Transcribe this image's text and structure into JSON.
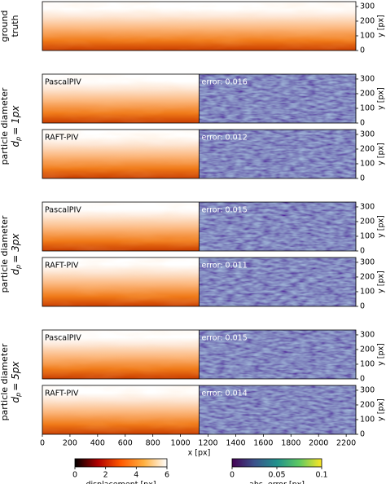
{
  "figure": {
    "xlabel": "x [px]",
    "ylabel": "y [px]",
    "xlim": [
      0,
      2270
    ],
    "xticks": [
      0,
      200,
      400,
      600,
      800,
      1000,
      1200,
      1400,
      1600,
      1800,
      2000,
      2200
    ],
    "ylim": [
      0,
      333
    ],
    "yticks": [
      0,
      100,
      200,
      300
    ],
    "rows": [
      {
        "label": [
          "ground",
          "truth"
        ]
      },
      {
        "label": [
          "particle diameter"
        ],
        "symbol": "d",
        "subscript": "p",
        "rest": "= 1px",
        "panels": [
          {
            "method": "PascalPIV",
            "error": "error: 0.016"
          },
          {
            "method": "RAFT-PIV",
            "error": "error: 0.012"
          }
        ]
      },
      {
        "label": [
          "particle diameter"
        ],
        "symbol": "d",
        "subscript": "p",
        "rest": "= 3px",
        "panels": [
          {
            "method": "PascalPIV",
            "error": "error: 0.015"
          },
          {
            "method": "RAFT-PIV",
            "error": "error: 0.011"
          }
        ]
      },
      {
        "label": [
          "particle diameter"
        ],
        "symbol": "d",
        "subscript": "p",
        "rest": "= 5px",
        "panels": [
          {
            "method": "PascalPIV",
            "error": "error: 0.015"
          },
          {
            "method": "RAFT-PIV",
            "error": "error: 0.014"
          }
        ]
      }
    ],
    "colorbars": [
      {
        "label": "displacement [px]",
        "lim": [
          0,
          6
        ],
        "ticks": [
          0,
          2,
          4,
          6
        ],
        "colors": [
          "#000000",
          "#b00000",
          "#ff5a00",
          "#ffb040",
          "#ffffff"
        ]
      },
      {
        "label": "abs. error [px]",
        "lim": [
          0,
          0.1
        ],
        "ticks": [
          0,
          {
            "value": 0.05,
            "label": "0.05"
          },
          0.1
        ],
        "colors": [
          "#440154",
          "#3b528b",
          "#21918c",
          "#5ec962",
          "#fde725"
        ]
      }
    ]
  }
}
